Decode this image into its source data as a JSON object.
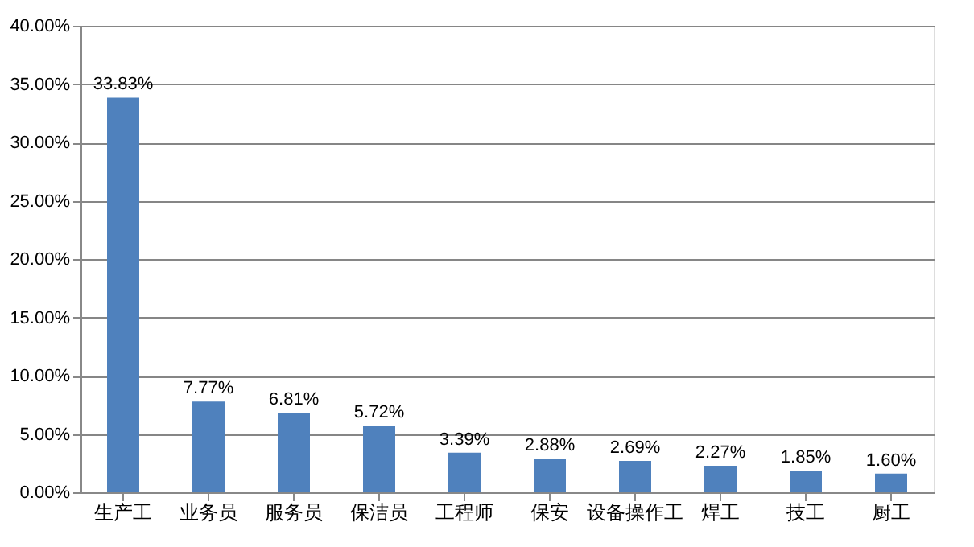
{
  "chart_data": {
    "type": "bar",
    "categories": [
      "生产工",
      "业务员",
      "服务员",
      "保洁员",
      "工程师",
      "保安",
      "设备操作工",
      "焊工",
      "技工",
      "厨工"
    ],
    "values": [
      33.83,
      7.77,
      6.81,
      5.72,
      3.39,
      2.88,
      2.69,
      2.27,
      1.85,
      1.6
    ],
    "value_labels": [
      "33.83%",
      "7.77%",
      "6.81%",
      "5.72%",
      "3.39%",
      "2.88%",
      "2.69%",
      "2.27%",
      "1.85%",
      "1.60%"
    ],
    "color": "#4f81bd",
    "ylim": [
      0,
      40
    ],
    "yticks": [
      {
        "value": 0,
        "label": "0.00%"
      },
      {
        "value": 5,
        "label": "5.00%"
      },
      {
        "value": 10,
        "label": "10.00%"
      },
      {
        "value": 15,
        "label": "15.00%"
      },
      {
        "value": 20,
        "label": "20.00%"
      },
      {
        "value": 25,
        "label": "25.00%"
      },
      {
        "value": 30,
        "label": "30.00%"
      },
      {
        "value": 35,
        "label": "35.00%"
      },
      {
        "value": 40,
        "label": "40.00%"
      }
    ],
    "grid": "y"
  }
}
